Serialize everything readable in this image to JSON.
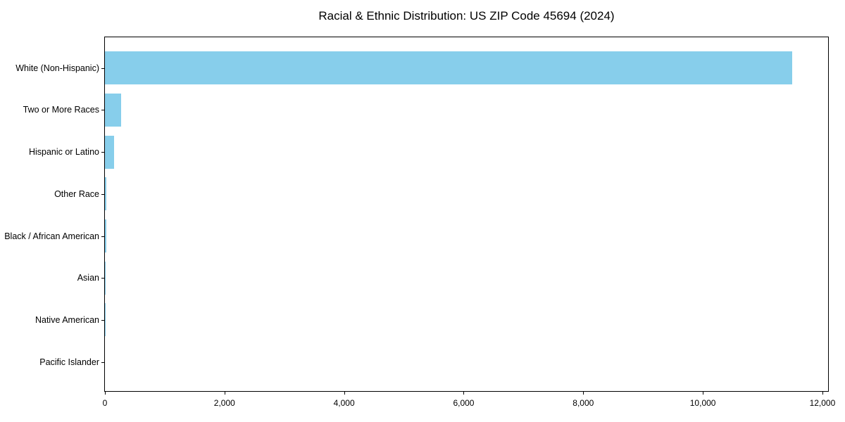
{
  "chart_data": {
    "type": "bar",
    "orientation": "horizontal",
    "title": "Racial & Ethnic Distribution: US ZIP Code 45694 (2024)",
    "categories": [
      "White (Non-Hispanic)",
      "Two or More Races",
      "Hispanic or Latino",
      "Other Race",
      "Black / African American",
      "Asian",
      "Native American",
      "Pacific Islander"
    ],
    "values": [
      11500,
      270,
      150,
      28,
      18,
      8,
      5,
      0
    ],
    "xlabel": "",
    "ylabel": "",
    "xlim": [
      0,
      12095
    ],
    "x_ticks": [
      0,
      2000,
      4000,
      6000,
      8000,
      10000,
      12000
    ],
    "x_tick_labels": [
      "0",
      "2,000",
      "4,000",
      "6,000",
      "8,000",
      "10,000",
      "12,000"
    ],
    "bar_color": "#87CEEB",
    "axis_color": "#000000",
    "background_color": "#ffffff",
    "grid": false,
    "legend_position": "none"
  }
}
